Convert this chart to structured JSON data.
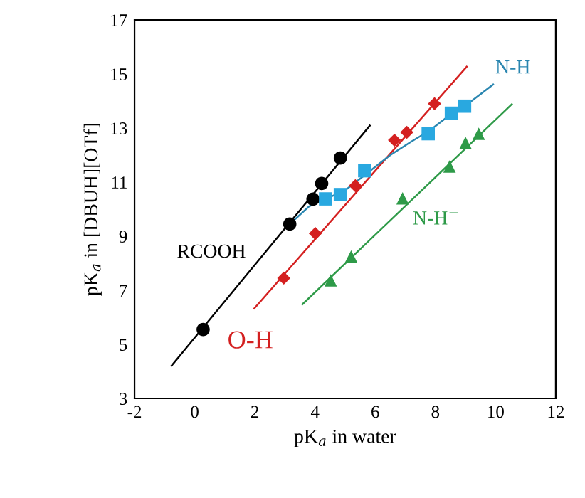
{
  "chart_data": {
    "type": "scatter",
    "xlabel": "pK$_{a}$ in water",
    "ylabel": "pK$_{a}$ in [DBUH][OTf]",
    "xlim": [
      -2,
      12
    ],
    "ylim": [
      3,
      17
    ],
    "xticks": [
      -2,
      0,
      2,
      4,
      6,
      8,
      10,
      12
    ],
    "yticks": [
      3,
      5,
      7,
      9,
      11,
      13,
      15,
      17
    ],
    "grid": false,
    "legend": false,
    "series": [
      {
        "marker": "circle",
        "color": "#000000",
        "x": [
          0.28,
          3.16,
          3.93,
          4.22,
          4.84
        ],
        "values": [
          5.55,
          9.45,
          10.37,
          10.95,
          11.89
        ]
      },
      {
        "marker": "diamond",
        "color": "#d42020",
        "x": [
          2.96,
          4.01,
          5.34,
          6.64,
          7.05,
          7.97
        ],
        "values": [
          7.45,
          9.1,
          10.87,
          12.55,
          12.84,
          13.9
        ]
      },
      {
        "marker": "square",
        "color": "#29a8e0",
        "x": [
          4.35,
          4.84,
          5.65,
          7.76,
          8.53,
          8.97
        ],
        "values": [
          10.38,
          10.54,
          11.42,
          12.79,
          13.55,
          13.81
        ]
      },
      {
        "marker": "triangle",
        "color": "#2e9a48",
        "x": [
          4.52,
          5.2,
          6.91,
          8.47,
          9.0,
          9.44
        ],
        "values": [
          7.37,
          8.25,
          10.4,
          11.58,
          12.45,
          12.79
        ]
      },
      {
        "type": "line",
        "name": "RCOOH",
        "marker": "none",
        "color": "#000000",
        "x": [
          -0.77,
          5.82
        ],
        "values": [
          4.21,
          13.09
        ]
      },
      {
        "type": "line",
        "name": "O-H",
        "marker": "none",
        "color": "#d42020",
        "x": [
          1.98,
          9.04
        ],
        "values": [
          6.33,
          15.27
        ]
      },
      {
        "type": "line",
        "name": "N-H",
        "marker": "none",
        "color": "#2a86b0",
        "x": [
          3.16,
          3.8,
          4.4,
          5.0,
          5.7,
          6.5,
          7.2,
          7.8,
          8.5,
          9.2,
          9.92
        ],
        "values": [
          9.45,
          10.1,
          10.4,
          10.7,
          11.3,
          12.0,
          12.5,
          12.9,
          13.5,
          14.0,
          14.61
        ]
      },
      {
        "type": "line",
        "name": "N-H$^{−}$",
        "marker": "none",
        "color": "#2e9a48",
        "x": [
          3.58,
          10.54
        ],
        "values": [
          6.48,
          13.88
        ]
      }
    ]
  }
}
